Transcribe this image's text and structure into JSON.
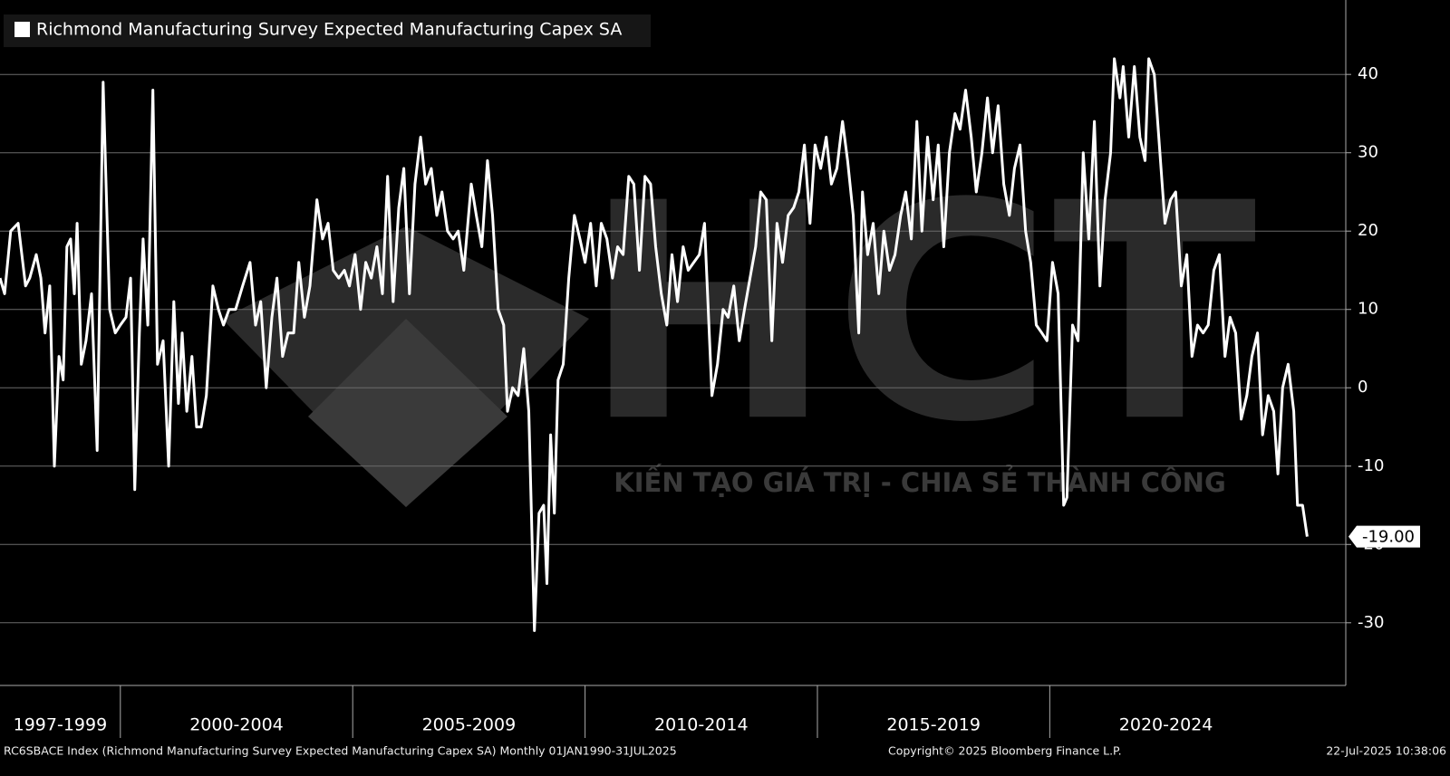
{
  "chart_data": {
    "type": "line",
    "x": [
      1997.41,
      1997.51,
      1997.64,
      1997.8,
      1997.96,
      1998.05,
      1998.19,
      1998.29,
      1998.38,
      1998.48,
      1998.58,
      1998.68,
      1998.77,
      1998.85,
      1998.93,
      1999.01,
      1999.07,
      1999.16,
      1999.26,
      1999.38,
      1999.5,
      1999.63,
      1999.77,
      1999.89,
      2000.0,
      2000.12,
      2000.22,
      2000.31,
      2000.41,
      2000.49,
      2000.59,
      2000.7,
      2000.8,
      2000.92,
      2001.04,
      2001.15,
      2001.25,
      2001.33,
      2001.43,
      2001.54,
      2001.64,
      2001.74,
      2001.85,
      2001.99,
      2002.11,
      2002.22,
      2002.34,
      2002.48,
      2002.63,
      2002.79,
      2002.91,
      2003.02,
      2003.14,
      2003.26,
      2003.37,
      2003.49,
      2003.61,
      2003.73,
      2003.84,
      2003.96,
      2004.08,
      2004.23,
      2004.35,
      2004.47,
      2004.58,
      2004.7,
      2004.82,
      2004.93,
      2005.05,
      2005.17,
      2005.28,
      2005.4,
      2005.52,
      2005.64,
      2005.75,
      2005.87,
      2005.99,
      2006.1,
      2006.22,
      2006.34,
      2006.46,
      2006.57,
      2006.69,
      2006.81,
      2006.92,
      2007.04,
      2007.16,
      2007.27,
      2007.39,
      2007.55,
      2007.66,
      2007.78,
      2007.9,
      2008.01,
      2008.13,
      2008.25,
      2008.33,
      2008.44,
      2008.56,
      2008.68,
      2008.79,
      2008.91,
      2009.01,
      2009.11,
      2009.18,
      2009.26,
      2009.34,
      2009.42,
      2009.53,
      2009.65,
      2009.77,
      2009.89,
      2010.0,
      2010.12,
      2010.24,
      2010.35,
      2010.47,
      2010.59,
      2010.7,
      2010.82,
      2010.94,
      2011.05,
      2011.17,
      2011.29,
      2011.41,
      2011.52,
      2011.64,
      2011.76,
      2011.87,
      2011.99,
      2012.11,
      2012.22,
      2012.34,
      2012.46,
      2012.57,
      2012.73,
      2012.85,
      2012.97,
      2013.08,
      2013.2,
      2013.32,
      2013.43,
      2013.55,
      2013.67,
      2013.78,
      2013.9,
      2014.02,
      2014.13,
      2014.25,
      2014.37,
      2014.49,
      2014.6,
      2014.72,
      2014.84,
      2014.95,
      2015.07,
      2015.19,
      2015.3,
      2015.42,
      2015.54,
      2015.65,
      2015.77,
      2015.89,
      2015.97,
      2016.08,
      2016.2,
      2016.32,
      2016.43,
      2016.55,
      2016.67,
      2016.79,
      2016.9,
      2017.02,
      2017.14,
      2017.25,
      2017.37,
      2017.49,
      2017.6,
      2017.72,
      2017.84,
      2017.96,
      2018.07,
      2018.19,
      2018.31,
      2018.42,
      2018.54,
      2018.66,
      2018.77,
      2018.89,
      2019.01,
      2019.13,
      2019.24,
      2019.36,
      2019.48,
      2019.59,
      2019.71,
      2019.83,
      2019.94,
      2020.06,
      2020.18,
      2020.3,
      2020.37,
      2020.49,
      2020.61,
      2020.72,
      2020.84,
      2020.96,
      2021.08,
      2021.19,
      2021.31,
      2021.39,
      2021.51,
      2021.58,
      2021.7,
      2021.82,
      2021.94,
      2022.05,
      2022.13,
      2022.25,
      2022.37,
      2022.48,
      2022.6,
      2022.71,
      2022.83,
      2022.95,
      2023.06,
      2023.18,
      2023.3,
      2023.41,
      2023.53,
      2023.65,
      2023.77,
      2023.88,
      2024.0,
      2024.12,
      2024.24,
      2024.35,
      2024.47,
      2024.58,
      2024.7,
      2024.82,
      2024.91,
      2025.01,
      2025.13,
      2025.25,
      2025.33,
      2025.44,
      2025.54
    ],
    "series": [
      {
        "name": "Richmond Manufacturing Survey Expected Manufacturing Capex SA",
        "color": "#ffffff",
        "values": [
          14,
          12,
          20,
          21,
          13,
          14,
          17,
          14,
          7,
          13,
          -10,
          4,
          1,
          18,
          19,
          12,
          21,
          3,
          6,
          12,
          -8,
          39,
          10,
          7,
          8,
          9,
          14,
          -13,
          7,
          19,
          8,
          38,
          3,
          6,
          -10,
          11,
          -2,
          7,
          -3,
          4,
          -5,
          -5,
          -1,
          13,
          10,
          8,
          10,
          10,
          13,
          16,
          8,
          11,
          0,
          9,
          14,
          4,
          7,
          7,
          16,
          9,
          13,
          24,
          19,
          21,
          15,
          14,
          15,
          13,
          17,
          10,
          16,
          14,
          18,
          12,
          27,
          11,
          23,
          28,
          12,
          26,
          32,
          26,
          28,
          22,
          25,
          20,
          19,
          20,
          15,
          26,
          22,
          18,
          29,
          22,
          10,
          8,
          -3,
          0,
          -1,
          5,
          -3,
          -31,
          -16,
          -15,
          -25,
          -6,
          -16,
          1,
          3,
          14,
          22,
          19,
          16,
          21,
          13,
          21,
          19,
          14,
          18,
          17,
          27,
          26,
          15,
          27,
          26,
          18,
          12,
          8,
          17,
          11,
          18,
          15,
          16,
          17,
          21,
          -1,
          3,
          10,
          9,
          13,
          6,
          10,
          14,
          18,
          25,
          24,
          6,
          21,
          16,
          22,
          23,
          25,
          31,
          21,
          31,
          28,
          32,
          26,
          28,
          34,
          29,
          22,
          7,
          25,
          17,
          21,
          12,
          20,
          15,
          17,
          22,
          25,
          19,
          34,
          20,
          32,
          24,
          31,
          18,
          30,
          35,
          33,
          38,
          32,
          25,
          30,
          37,
          30,
          36,
          26,
          22,
          28,
          31,
          20,
          16,
          8,
          7,
          6,
          16,
          12,
          -15,
          -14,
          8,
          6,
          30,
          19,
          34,
          13,
          24,
          30,
          42,
          37,
          41,
          32,
          41,
          32,
          29,
          42,
          40,
          30,
          21,
          24,
          25,
          13,
          17,
          4,
          8,
          7,
          8,
          15,
          17,
          4,
          9,
          7,
          -4,
          -1,
          4,
          7,
          -6,
          -1,
          -3,
          -11,
          0,
          3,
          -3,
          -15,
          -15,
          -19
        ]
      }
    ],
    "last_label": "-19.00",
    "xlim": [
      1997.41,
      2026.37
    ],
    "ylim": [
      -38,
      49.5
    ],
    "yticks": [
      -30,
      -20,
      -10,
      0,
      10,
      20,
      30,
      40
    ],
    "xticks": [
      {
        "value": 1997,
        "label": "1997-1999"
      },
      {
        "value": 2000,
        "label": "2000-2004"
      },
      {
        "value": 2005,
        "label": "2005-2009"
      },
      {
        "value": 2010,
        "label": "2010-2014"
      },
      {
        "value": 2015,
        "label": "2015-2019"
      },
      {
        "value": 2020,
        "label": "2020-2024"
      }
    ],
    "grid": true,
    "footer": {
      "source": "RC6SBACE Index (Richmond Manufacturing Survey Expected Manufacturing Capex SA)  Monthly 01JAN1990-31JUL2025",
      "copyright": "Copyright© 2025 Bloomberg Finance L.P.",
      "timestamp": "22-Jul-2025 10:38:06"
    },
    "watermark": {
      "logo": "HCT",
      "tagline": "KIẾN TẠO GIÁ TRỊ - CHIA SẺ THÀNH CÔNG"
    }
  }
}
